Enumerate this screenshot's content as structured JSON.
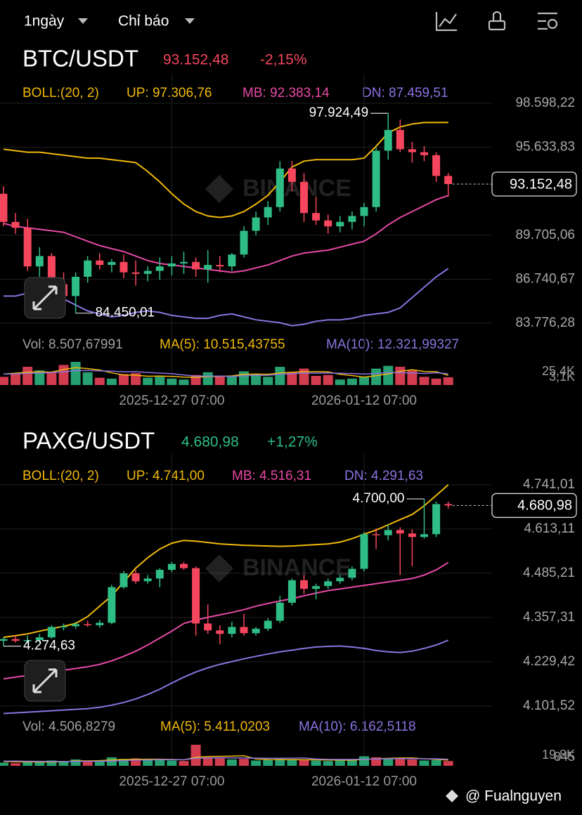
{
  "header": {
    "interval": "1ngày",
    "indicators": "Chỉ báo"
  },
  "footer": "@ Fualnguyen",
  "chart_data": [
    {
      "type": "candlestick",
      "title": "BTC/USDT",
      "price": "93.152,48",
      "change": "-2,15%",
      "price_color": "#f6465d",
      "up_color": "#2ebd85",
      "down_color": "#f6465d",
      "watermark": "BINANCE",
      "categories": [
        null,
        null,
        null,
        null,
        null,
        null,
        null,
        null,
        null,
        null,
        null,
        null,
        null,
        null,
        "2025-12-27 07:00",
        null,
        null,
        null,
        null,
        null,
        null,
        null,
        null,
        null,
        null,
        null,
        null,
        null,
        null,
        null,
        "2026-01-12 07:00",
        null,
        null,
        null,
        null,
        null,
        null,
        null
      ],
      "open": [
        92500,
        90600,
        90200,
        87600,
        88300,
        86400,
        85600,
        86900,
        88000,
        87700,
        87900,
        87200,
        87100,
        87300,
        87600,
        87800,
        87900,
        87400,
        87700,
        87600,
        88400,
        90000,
        90900,
        91600,
        94200,
        93300,
        91200,
        90700,
        90300,
        90600,
        91000,
        91600,
        95400,
        96800,
        95500,
        95300,
        95100,
        93700
      ],
      "high": [
        93000,
        91200,
        90800,
        88900,
        88500,
        87200,
        87200,
        88300,
        88500,
        88100,
        88400,
        88000,
        87600,
        88200,
        88300,
        88600,
        88200,
        88700,
        88300,
        88500,
        90300,
        91300,
        92000,
        94700,
        94700,
        93900,
        92300,
        91100,
        91000,
        91300,
        91900,
        95600,
        97924.49,
        97500,
        96000,
        95700,
        95300,
        93900
      ],
      "low": [
        90300,
        89800,
        87300,
        86900,
        86100,
        85300,
        84450.01,
        86500,
        87400,
        87200,
        86800,
        86300,
        86600,
        86700,
        87000,
        87100,
        86900,
        86500,
        87200,
        87300,
        88200,
        89700,
        90400,
        91300,
        92700,
        90600,
        90400,
        89800,
        89900,
        90100,
        90300,
        91300,
        94800,
        95300,
        94600,
        94700,
        93300,
        92300
      ],
      "close": [
        90600,
        90200,
        87600,
        88300,
        86400,
        85600,
        86900,
        88000,
        87700,
        87900,
        87200,
        87100,
        87300,
        87600,
        87800,
        87900,
        87400,
        87700,
        87600,
        88400,
        90000,
        90900,
        91600,
        94200,
        93300,
        91200,
        90700,
        90300,
        90600,
        91000,
        91600,
        95400,
        96800,
        95500,
        95300,
        95100,
        93700,
        93152.48
      ],
      "high_label": "97.924,49",
      "low_label": "84.450,01",
      "ylim": [
        82920,
        98930
      ],
      "yticks": [
        {
          "value": 98598.22,
          "label": "98.598,22"
        },
        {
          "value": 95633.83,
          "label": "95.633,83"
        },
        {
          "value": 89705.06,
          "label": "89.705,06"
        },
        {
          "value": 86740.67,
          "label": "86.740,67"
        },
        {
          "value": 83776.28,
          "label": "83.776,28"
        }
      ],
      "boll_title": "BOLL:(20, 2)",
      "bands": [
        {
          "label": "UP: 97.306,76",
          "color": "#f0b90b",
          "values": [
            95500,
            95400,
            95300,
            95300,
            95200,
            95100,
            95000,
            94900,
            94900,
            94800,
            94700,
            94600,
            94000,
            93300,
            92500,
            91800,
            91300,
            91000,
            90900,
            91000,
            91300,
            91800,
            92400,
            93300,
            94300,
            94700,
            94800,
            94800,
            94800,
            94800,
            94900,
            95700,
            96600,
            97000,
            97200,
            97300,
            97300,
            97306.76
          ]
        },
        {
          "label": "MB: 92.383,14",
          "color": "#e649a6",
          "values": [
            90500,
            90300,
            90200,
            90100,
            90000,
            89900,
            89600,
            89300,
            89000,
            88800,
            88600,
            88300,
            88000,
            87800,
            87700,
            87600,
            87500,
            87400,
            87300,
            87200,
            87300,
            87500,
            87700,
            88000,
            88300,
            88500,
            88600,
            88700,
            88900,
            89100,
            89300,
            89800,
            90400,
            90900,
            91300,
            91700,
            92100,
            92383.14
          ]
        },
        {
          "label": "DN: 87.459,51",
          "color": "#8b73e0",
          "values": [
            85600,
            85600,
            85800,
            85900,
            85700,
            85400,
            85000,
            84600,
            84400,
            84200,
            84300,
            84500,
            84600,
            84500,
            84300,
            84200,
            84100,
            84100,
            84300,
            84400,
            84200,
            84000,
            83900,
            83800,
            83600,
            83700,
            83900,
            84000,
            84000,
            84100,
            84300,
            84400,
            84500,
            84800,
            85500,
            86200,
            86900,
            87459.51
          ]
        }
      ],
      "volume": {
        "label": "Vol: 8.507,67991",
        "label_color": "#a0a0a0",
        "ylim": [
          0,
          25400
        ],
        "axis_labels": [
          "25,4K",
          "3,1K"
        ],
        "values": [
          9000,
          12000,
          20000,
          16000,
          14000,
          22000,
          25400,
          14000,
          8000,
          7000,
          12000,
          13000,
          8000,
          9000,
          7000,
          6000,
          11000,
          14000,
          9000,
          10000,
          15000,
          12000,
          9000,
          20000,
          14000,
          18000,
          10000,
          11000,
          6000,
          7000,
          9000,
          18000,
          21000,
          20000,
          16000,
          9000,
          7000,
          8507.67991
        ],
        "lines": [
          {
            "label": "MA(5): 10.515,43755",
            "color": "#f0b90b",
            "values": [
              12000,
              13000,
              14000,
              14500,
              14200,
              17000,
              19000,
              18000,
              16500,
              13300,
              11000,
              10800,
              9600,
              9800,
              9400,
              8600,
              8400,
              9200,
              9400,
              10000,
              11800,
              12000,
              11800,
              13200,
              14000,
              14600,
              14600,
              14400,
              11800,
              10400,
              8600,
              10200,
              12200,
              15000,
              16800,
              14800,
              14600,
              10515.43755
            ]
          },
          {
            "label": "MA(10): 12.321,99327",
            "color": "#8b73e0",
            "values": [
              12000,
              12200,
              12800,
              13200,
              13600,
              14500,
              15800,
              16000,
              15500,
              15200,
              14500,
              14600,
              13800,
              13100,
              12400,
              11000,
              9700,
              9700,
              9800,
              9500,
              10200,
              10600,
              10700,
              11700,
              12400,
              13100,
              13000,
              13200,
              12900,
              12600,
              12000,
              12600,
              13800,
              13500,
              13300,
              12600,
              13500,
              12321.99327
            ]
          }
        ]
      }
    },
    {
      "type": "candlestick",
      "title": "PAXG/USDT",
      "price": "4.680,98",
      "change": "+1,27%",
      "price_color": "#2ebd85",
      "up_color": "#2ebd85",
      "down_color": "#f6465d",
      "watermark": "BINANCE",
      "categories": [
        null,
        null,
        null,
        null,
        null,
        null,
        null,
        null,
        null,
        null,
        null,
        null,
        null,
        null,
        "2025-12-27 07:00",
        null,
        null,
        null,
        null,
        null,
        null,
        null,
        null,
        null,
        null,
        null,
        null,
        null,
        null,
        null,
        "2026-01-12 07:00",
        null,
        null,
        null,
        null,
        null,
        null,
        null
      ],
      "open": [
        4290,
        4295,
        4290,
        4292,
        4300,
        4330,
        4332,
        4338,
        4335,
        4342,
        4445,
        4485,
        4462,
        4470,
        4495,
        4512,
        4500,
        4340,
        4320,
        4310,
        4330,
        4312,
        4325,
        4348,
        4400,
        4465,
        4440,
        4448,
        4462,
        4472,
        4498,
        4598,
        4595,
        4610,
        4600,
        4590,
        4598,
        4685
      ],
      "high": [
        4300,
        4305,
        4305,
        4310,
        4335,
        4340,
        4345,
        4348,
        4350,
        4452,
        4492,
        4495,
        4480,
        4500,
        4518,
        4518,
        4505,
        4395,
        4335,
        4345,
        4368,
        4330,
        4355,
        4420,
        4470,
        4480,
        4455,
        4470,
        4480,
        4505,
        4605,
        4615,
        4625,
        4618,
        4612,
        4700,
        4692,
        4692
      ],
      "low": [
        4274.63,
        4285,
        4282,
        4285,
        4296,
        4320,
        4325,
        4330,
        4328,
        4338,
        4440,
        4455,
        4455,
        4445,
        4488,
        4495,
        4305,
        4310,
        4280,
        4300,
        4305,
        4305,
        4318,
        4342,
        4392,
        4425,
        4410,
        4440,
        4455,
        4465,
        4490,
        4555,
        4580,
        4480,
        4505,
        4585,
        4590,
        4672
      ],
      "close": [
        4295,
        4290,
        4292,
        4300,
        4330,
        4332,
        4338,
        4335,
        4342,
        4445,
        4485,
        4462,
        4470,
        4495,
        4512,
        4500,
        4340,
        4320,
        4310,
        4330,
        4312,
        4325,
        4348,
        4400,
        4465,
        4440,
        4448,
        4462,
        4472,
        4498,
        4598,
        4595,
        4610,
        4600,
        4590,
        4598,
        4685,
        4680.98
      ],
      "high_label": "4.700,00",
      "low_label": "4.274,63",
      "ylim": [
        4075,
        4761
      ],
      "yticks": [
        {
          "value": 4741.01,
          "label": "4.741,01"
        },
        {
          "value": 4613.11,
          "label": "4.613,11"
        },
        {
          "value": 4485.21,
          "label": "4.485,21"
        },
        {
          "value": 4357.31,
          "label": "4.357,31"
        },
        {
          "value": 4229.42,
          "label": "4.229,42"
        },
        {
          "value": 4101.52,
          "label": "4.101,52"
        }
      ],
      "boll_title": "BOLL:(20, 2)",
      "bands": [
        {
          "label": "UP: 4.741,00",
          "color": "#f0b90b",
          "values": [
            4300,
            4305,
            4310,
            4318,
            4325,
            4332,
            4340,
            4360,
            4390,
            4420,
            4460,
            4500,
            4530,
            4555,
            4572,
            4580,
            4578,
            4574,
            4570,
            4568,
            4566,
            4565,
            4564,
            4563,
            4564,
            4566,
            4568,
            4570,
            4575,
            4585,
            4598,
            4610,
            4625,
            4640,
            4655,
            4680,
            4710,
            4741.0
          ]
        },
        {
          "label": "MB: 4.516,31",
          "color": "#e649a6",
          "values": [
            4180,
            4185,
            4190,
            4195,
            4200,
            4205,
            4210,
            4215,
            4222,
            4232,
            4245,
            4260,
            4278,
            4298,
            4318,
            4340,
            4350,
            4358,
            4365,
            4372,
            4380,
            4390,
            4398,
            4405,
            4412,
            4420,
            4428,
            4435,
            4440,
            4445,
            4450,
            4455,
            4460,
            4465,
            4470,
            4480,
            4495,
            4516.31
          ]
        },
        {
          "label": "DN: 4.291,63",
          "color": "#8b73e0",
          "values": [
            4080,
            4082,
            4084,
            4086,
            4088,
            4090,
            4092,
            4094,
            4098,
            4104,
            4112,
            4122,
            4135,
            4150,
            4168,
            4185,
            4200,
            4212,
            4222,
            4230,
            4238,
            4245,
            4252,
            4258,
            4263,
            4268,
            4272,
            4274,
            4275,
            4272,
            4268,
            4262,
            4258,
            4256,
            4260,
            4268,
            4278,
            4291.63
          ]
        }
      ],
      "volume": {
        "label": "Vol: 4.506,8279",
        "label_color": "#a0a0a0",
        "ylim": [
          0,
          19800
        ],
        "axis_labels": [
          "19,8K",
          "845"
        ],
        "values": [
          3000,
          2500,
          4000,
          3500,
          5000,
          4500,
          6000,
          4000,
          5000,
          8000,
          6500,
          7000,
          5500,
          6000,
          5000,
          4500,
          19800,
          8000,
          7000,
          6000,
          6500,
          5000,
          5500,
          6500,
          6000,
          5500,
          5000,
          4500,
          6000,
          5500,
          9000,
          8000,
          6500,
          7500,
          6000,
          5000,
          5500,
          4506.8279
        ],
        "lines": [
          {
            "label": "MA(5): 5.411,0203",
            "color": "#f0b90b",
            "values": [
              4000,
              3800,
              3700,
              3600,
              3600,
              3900,
              4600,
              4600,
              4900,
              5500,
              5900,
              6100,
              6200,
              6200,
              6000,
              5600,
              8000,
              8700,
              8900,
              9100,
              9500,
              6500,
              6000,
              5900,
              5900,
              5700,
              5700,
              5500,
              5400,
              5300,
              6000,
              6600,
              7000,
              7300,
              7400,
              6600,
              6100,
              5411.0203
            ]
          },
          {
            "label": "MA(10): 6.162,5118",
            "color": "#8b73e0",
            "values": [
              4500,
              4400,
              4300,
              4200,
              4100,
              4000,
              4100,
              4200,
              4300,
              4550,
              4900,
              5350,
              5500,
              5800,
              5800,
              5700,
              7100,
              7400,
              7600,
              7400,
              7300,
              7200,
              7100,
              7100,
              7200,
              7300,
              6400,
              6100,
              6000,
              6000,
              6200,
              6500,
              6600,
              6700,
              6700,
              6600,
              6600,
              6162.5118
            ]
          }
        ]
      }
    }
  ]
}
